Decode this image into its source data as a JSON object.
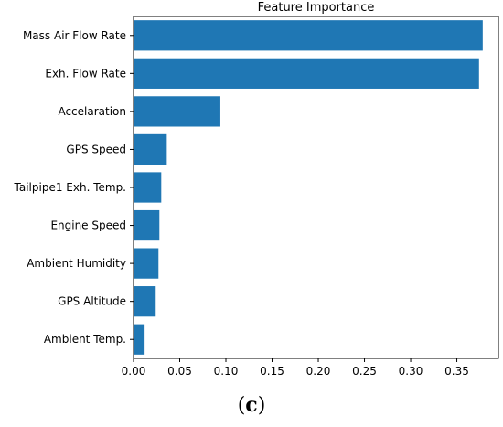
{
  "chart_data": {
    "type": "bar",
    "orientation": "horizontal",
    "title": "Feature Importance",
    "xlabel": "",
    "ylabel": "",
    "categories": [
      "Mass Air Flow Rate",
      "Exh. Flow Rate",
      "Accelaration",
      "GPS Speed",
      "Tailpipe1 Exh. Temp.",
      "Engine Speed",
      "Ambient Humidity",
      "GPS Altitude",
      "Ambient Temp."
    ],
    "values": [
      0.378,
      0.374,
      0.094,
      0.036,
      0.03,
      0.028,
      0.027,
      0.024,
      0.012
    ],
    "xlim": [
      0.0,
      0.395
    ],
    "xticks": [
      "0.00",
      "0.05",
      "0.10",
      "0.15",
      "0.20",
      "0.25",
      "0.30",
      "0.35"
    ],
    "xtick_values": [
      0.0,
      0.05,
      0.1,
      0.15,
      0.2,
      0.25,
      0.3,
      0.35
    ],
    "bar_color": "#1f77b4",
    "grid": false,
    "legend": "none"
  },
  "caption": {
    "open": "(",
    "letter": "c",
    "close": ")"
  }
}
